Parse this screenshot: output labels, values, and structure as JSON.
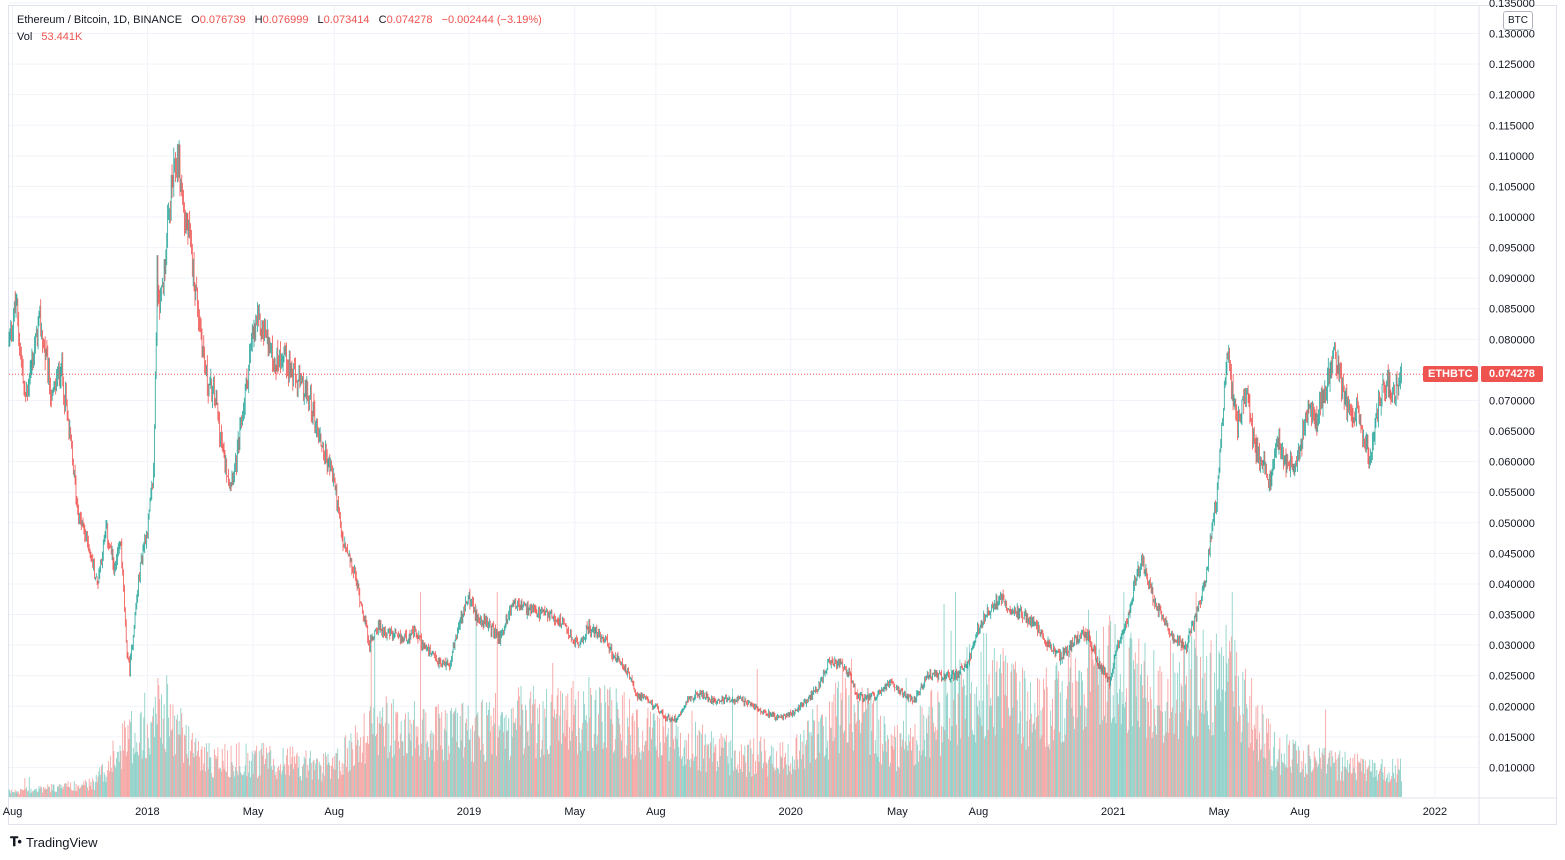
{
  "header": {
    "symbol_title": "Ethereum / Bitcoin, 1D, BINANCE",
    "open_label": "O",
    "open_value": "0.076739",
    "high_label": "H",
    "high_value": "0.076999",
    "low_label": "L",
    "low_value": "0.073414",
    "close_label": "C",
    "close_value": "0.074278",
    "change_value": "−0.002444 (−3.19%)",
    "vol_label": "Vol",
    "vol_value": "53.441K"
  },
  "price_scale": {
    "currency_badge": "BTC",
    "current_symbol_tag": "ETHBTC",
    "current_price_tag": "0.074278"
  },
  "brand": {
    "name": "TradingView",
    "icon": "tradingview-logo-icon"
  },
  "colors": {
    "up": "#26a69a",
    "down": "#ef5350",
    "grid": "#f0f3fa",
    "axis_text": "#131722"
  },
  "chart_data": {
    "type": "candlestick",
    "symbol": "ETHBTC",
    "interval": "1D",
    "exchange": "BINANCE",
    "ylim": [
      0.005,
      0.1345
    ],
    "y_ticks": [
      "0.010000",
      "0.015000",
      "0.020000",
      "0.025000",
      "0.030000",
      "0.035000",
      "0.040000",
      "0.045000",
      "0.050000",
      "0.055000",
      "0.060000",
      "0.065000",
      "0.070000",
      "0.075000",
      "0.080000",
      "0.085000",
      "0.090000",
      "0.095000",
      "0.100000",
      "0.105000",
      "0.110000",
      "0.115000",
      "0.120000",
      "0.125000",
      "0.130000",
      "0.135000"
    ],
    "x_ticks": [
      {
        "label": "Aug",
        "date": "2017-08-01"
      },
      {
        "label": "2018",
        "date": "2018-01-01"
      },
      {
        "label": "May",
        "date": "2018-05-01"
      },
      {
        "label": "Aug",
        "date": "2018-08-01"
      },
      {
        "label": "2019",
        "date": "2019-01-01"
      },
      {
        "label": "May",
        "date": "2019-05-01"
      },
      {
        "label": "Aug",
        "date": "2019-08-01"
      },
      {
        "label": "2020",
        "date": "2020-01-01"
      },
      {
        "label": "May",
        "date": "2020-05-01"
      },
      {
        "label": "Aug",
        "date": "2020-08-01"
      },
      {
        "label": "2021",
        "date": "2021-01-01"
      },
      {
        "label": "May",
        "date": "2021-05-01"
      },
      {
        "label": "Aug",
        "date": "2021-08-01"
      },
      {
        "label": "2022",
        "date": "2022-01-01"
      }
    ],
    "x_range": [
      "2017-07-28",
      "2022-02-20"
    ],
    "last_date": "2021-11-24",
    "current_price": 0.074278,
    "price_path": [
      [
        "2017-07-28",
        0.08
      ],
      [
        "2017-08-05",
        0.086
      ],
      [
        "2017-08-15",
        0.07
      ],
      [
        "2017-09-01",
        0.083
      ],
      [
        "2017-09-15",
        0.07
      ],
      [
        "2017-09-25",
        0.076
      ],
      [
        "2017-10-05",
        0.064
      ],
      [
        "2017-10-15",
        0.051
      ],
      [
        "2017-10-25",
        0.047
      ],
      [
        "2017-11-05",
        0.04
      ],
      [
        "2017-11-15",
        0.049
      ],
      [
        "2017-11-25",
        0.042
      ],
      [
        "2017-12-02",
        0.047
      ],
      [
        "2017-12-08",
        0.03
      ],
      [
        "2017-12-12",
        0.026
      ],
      [
        "2017-12-18",
        0.035
      ],
      [
        "2017-12-25",
        0.044
      ],
      [
        "2018-01-02",
        0.05
      ],
      [
        "2018-01-08",
        0.058
      ],
      [
        "2018-01-12",
        0.09
      ],
      [
        "2018-01-16",
        0.086
      ],
      [
        "2018-01-22",
        0.094
      ],
      [
        "2018-01-28",
        0.104
      ],
      [
        "2018-02-05",
        0.11
      ],
      [
        "2018-02-12",
        0.1
      ],
      [
        "2018-02-18",
        0.096
      ],
      [
        "2018-02-25",
        0.088
      ],
      [
        "2018-03-01",
        0.083
      ],
      [
        "2018-03-10",
        0.073
      ],
      [
        "2018-03-20",
        0.07
      ],
      [
        "2018-03-28",
        0.061
      ],
      [
        "2018-04-05",
        0.057
      ],
      [
        "2018-04-12",
        0.06
      ],
      [
        "2018-04-20",
        0.069
      ],
      [
        "2018-04-28",
        0.078
      ],
      [
        "2018-05-05",
        0.083
      ],
      [
        "2018-05-15",
        0.081
      ],
      [
        "2018-05-25",
        0.076
      ],
      [
        "2018-06-05",
        0.078
      ],
      [
        "2018-06-15",
        0.074
      ],
      [
        "2018-06-25",
        0.072
      ],
      [
        "2018-07-05",
        0.07
      ],
      [
        "2018-07-15",
        0.064
      ],
      [
        "2018-07-25",
        0.06
      ],
      [
        "2018-08-01",
        0.057
      ],
      [
        "2018-08-10",
        0.047
      ],
      [
        "2018-08-18",
        0.044
      ],
      [
        "2018-08-25",
        0.041
      ],
      [
        "2018-09-05",
        0.034
      ],
      [
        "2018-09-10",
        0.03
      ],
      [
        "2018-09-18",
        0.033
      ],
      [
        "2018-10-01",
        0.032
      ],
      [
        "2018-10-15",
        0.031
      ],
      [
        "2018-11-01",
        0.032
      ],
      [
        "2018-11-15",
        0.029
      ],
      [
        "2018-11-28",
        0.027
      ],
      [
        "2018-12-10",
        0.027
      ],
      [
        "2018-12-20",
        0.033
      ],
      [
        "2019-01-01",
        0.038
      ],
      [
        "2019-01-08",
        0.035
      ],
      [
        "2019-01-15",
        0.034
      ],
      [
        "2019-01-25",
        0.033
      ],
      [
        "2019-02-05",
        0.031
      ],
      [
        "2019-02-20",
        0.037
      ],
      [
        "2019-03-05",
        0.036
      ],
      [
        "2019-03-20",
        0.035
      ],
      [
        "2019-04-01",
        0.035
      ],
      [
        "2019-04-15",
        0.034
      ],
      [
        "2019-04-28",
        0.031
      ],
      [
        "2019-05-08",
        0.03
      ],
      [
        "2019-05-15",
        0.033
      ],
      [
        "2019-05-25",
        0.032
      ],
      [
        "2019-06-05",
        0.031
      ],
      [
        "2019-06-15",
        0.028
      ],
      [
        "2019-06-28",
        0.026
      ],
      [
        "2019-07-10",
        0.022
      ],
      [
        "2019-07-20",
        0.021
      ],
      [
        "2019-08-01",
        0.02
      ],
      [
        "2019-08-12",
        0.018
      ],
      [
        "2019-08-25",
        0.018
      ],
      [
        "2019-09-05",
        0.021
      ],
      [
        "2019-09-20",
        0.022
      ],
      [
        "2019-10-05",
        0.021
      ],
      [
        "2019-10-20",
        0.021
      ],
      [
        "2019-11-05",
        0.021
      ],
      [
        "2019-11-20",
        0.02
      ],
      [
        "2019-12-05",
        0.019
      ],
      [
        "2019-12-20",
        0.018
      ],
      [
        "2020-01-05",
        0.019
      ],
      [
        "2020-01-20",
        0.021
      ],
      [
        "2020-02-01",
        0.023
      ],
      [
        "2020-02-12",
        0.027
      ],
      [
        "2020-02-25",
        0.027
      ],
      [
        "2020-03-08",
        0.025
      ],
      [
        "2020-03-15",
        0.022
      ],
      [
        "2020-03-25",
        0.021
      ],
      [
        "2020-04-10",
        0.022
      ],
      [
        "2020-04-25",
        0.024
      ],
      [
        "2020-05-08",
        0.022
      ],
      [
        "2020-05-20",
        0.021
      ],
      [
        "2020-06-05",
        0.025
      ],
      [
        "2020-06-20",
        0.025
      ],
      [
        "2020-07-05",
        0.025
      ],
      [
        "2020-07-20",
        0.027
      ],
      [
        "2020-07-28",
        0.031
      ],
      [
        "2020-08-05",
        0.034
      ],
      [
        "2020-08-15",
        0.036
      ],
      [
        "2020-08-28",
        0.038
      ],
      [
        "2020-09-05",
        0.036
      ],
      [
        "2020-09-20",
        0.035
      ],
      [
        "2020-10-05",
        0.033
      ],
      [
        "2020-10-20",
        0.03
      ],
      [
        "2020-11-01",
        0.028
      ],
      [
        "2020-11-15",
        0.03
      ],
      [
        "2020-11-25",
        0.032
      ],
      [
        "2020-12-05",
        0.031
      ],
      [
        "2020-12-15",
        0.027
      ],
      [
        "2020-12-28",
        0.024
      ],
      [
        "2021-01-05",
        0.03
      ],
      [
        "2021-01-15",
        0.033
      ],
      [
        "2021-01-25",
        0.04
      ],
      [
        "2021-02-02",
        0.044
      ],
      [
        "2021-02-10",
        0.04
      ],
      [
        "2021-02-20",
        0.036
      ],
      [
        "2021-03-01",
        0.034
      ],
      [
        "2021-03-10",
        0.031
      ],
      [
        "2021-03-25",
        0.03
      ],
      [
        "2021-04-05",
        0.035
      ],
      [
        "2021-04-15",
        0.04
      ],
      [
        "2021-04-22",
        0.048
      ],
      [
        "2021-04-28",
        0.054
      ],
      [
        "2021-05-04",
        0.065
      ],
      [
        "2021-05-10",
        0.078
      ],
      [
        "2021-05-16",
        0.072
      ],
      [
        "2021-05-22",
        0.066
      ],
      [
        "2021-06-01",
        0.072
      ],
      [
        "2021-06-10",
        0.062
      ],
      [
        "2021-06-20",
        0.06
      ],
      [
        "2021-06-28",
        0.057
      ],
      [
        "2021-07-05",
        0.064
      ],
      [
        "2021-07-15",
        0.06
      ],
      [
        "2021-07-25",
        0.059
      ],
      [
        "2021-08-01",
        0.062
      ],
      [
        "2021-08-10",
        0.069
      ],
      [
        "2021-08-20",
        0.067
      ],
      [
        "2021-09-01",
        0.073
      ],
      [
        "2021-09-08",
        0.078
      ],
      [
        "2021-09-15",
        0.074
      ],
      [
        "2021-09-25",
        0.068
      ],
      [
        "2021-10-05",
        0.068
      ],
      [
        "2021-10-12",
        0.063
      ],
      [
        "2021-10-20",
        0.061
      ],
      [
        "2021-10-28",
        0.068
      ],
      [
        "2021-11-05",
        0.073
      ],
      [
        "2021-11-15",
        0.071
      ],
      [
        "2021-11-24",
        0.074278
      ]
    ],
    "volume": {
      "ylim": [
        0,
        400000
      ],
      "path": [
        [
          "2017-07-28",
          8000
        ],
        [
          "2017-11-01",
          20000
        ],
        [
          "2017-12-10",
          90000
        ],
        [
          "2018-01-15",
          140000
        ],
        [
          "2018-03-01",
          60000
        ],
        [
          "2018-06-01",
          55000
        ],
        [
          "2018-08-01",
          45000
        ],
        [
          "2018-09-15",
          110000
        ],
        [
          "2018-12-01",
          95000
        ],
        [
          "2019-02-01",
          110000
        ],
        [
          "2019-05-15",
          125000
        ],
        [
          "2019-08-01",
          95000
        ],
        [
          "2019-11-01",
          60000
        ],
        [
          "2020-01-01",
          65000
        ],
        [
          "2020-03-10",
          145000
        ],
        [
          "2020-05-01",
          75000
        ],
        [
          "2020-08-05",
          175000
        ],
        [
          "2020-10-01",
          125000
        ],
        [
          "2021-01-05",
          195000
        ],
        [
          "2021-03-01",
          160000
        ],
        [
          "2021-05-10",
          190000
        ],
        [
          "2021-07-01",
          70000
        ],
        [
          "2021-09-01",
          50000
        ],
        [
          "2021-11-24",
          40000
        ]
      ]
    }
  }
}
